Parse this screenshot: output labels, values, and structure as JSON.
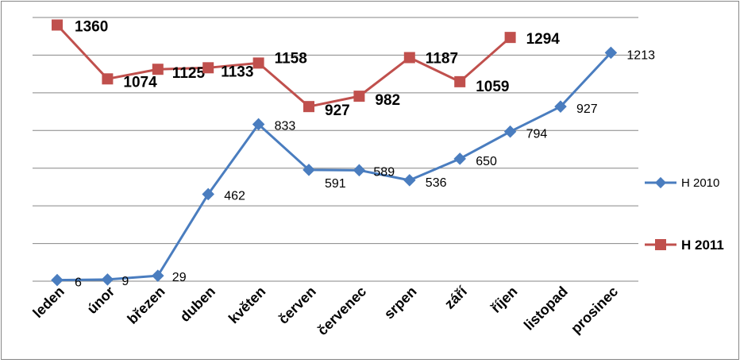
{
  "chart_data": {
    "type": "line",
    "categories": [
      "leden",
      "únor",
      "březen",
      "duben",
      "květen",
      "červen",
      "červenec",
      "srpen",
      "září",
      "říjen",
      "listopad",
      "prosinec"
    ],
    "ylim": [
      0,
      1400
    ],
    "grid": true,
    "legend_position": "right",
    "series": [
      {
        "name": "H 2010",
        "color": "#4a7dbf",
        "marker": "diamond",
        "values": [
          6,
          9,
          29,
          462,
          833,
          591,
          589,
          536,
          650,
          794,
          927,
          1213
        ]
      },
      {
        "name": "H 2011",
        "color": "#c0504d",
        "marker": "square",
        "values": [
          1360,
          1074,
          1125,
          1133,
          1158,
          927,
          982,
          1187,
          1059,
          1294,
          null,
          null
        ]
      }
    ]
  }
}
